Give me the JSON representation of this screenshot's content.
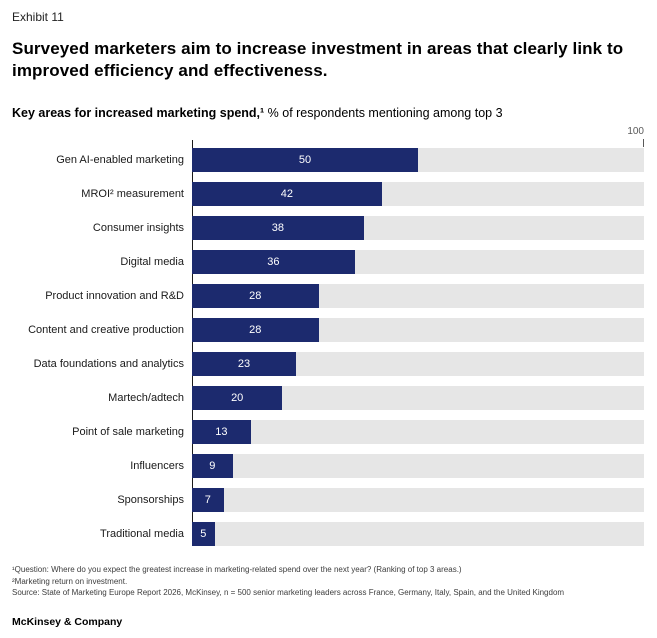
{
  "exhibit_label": "Exhibit 11",
  "title": "Surveyed marketers aim to increase investment in areas that clearly link to improved efficiency and effectiveness.",
  "subtitle": {
    "bold": "Key areas for increased marketing spend,¹",
    "rest": " % of respondents mentioning among top 3"
  },
  "chart_data": {
    "type": "bar",
    "orientation": "horizontal",
    "title": "Key areas for increased marketing spend, % of respondents mentioning among top 3",
    "categories": [
      "Gen AI-enabled marketing",
      "MROI² measurement",
      "Consumer insights",
      "Digital media",
      "Product innovation and R&D",
      "Content and creative production",
      "Data foundations and analytics",
      "Martech/adtech",
      "Point of sale marketing",
      "Influencers",
      "Sponsorships",
      "Traditional media"
    ],
    "values": [
      50,
      42,
      38,
      36,
      28,
      28,
      23,
      20,
      13,
      9,
      7,
      5
    ],
    "xlim": [
      0,
      100
    ],
    "axis_max_label": "100",
    "grid": "off",
    "legend": "none",
    "bar_color": "#1c2a6e",
    "track_color": "#e6e6e6",
    "value_label_color": "#ffffff"
  },
  "footnotes": [
    "¹Question: Where do you expect the greatest increase in marketing-related spend over the next year? (Ranking of top 3 areas.)",
    "²Marketing return on investment.",
    "Source: State of Marketing Europe Report 2026, McKinsey, n = 500 senior marketing leaders across France, Germany, Italy, Spain, and the United Kingdom"
  ],
  "footer": "McKinsey & Company"
}
